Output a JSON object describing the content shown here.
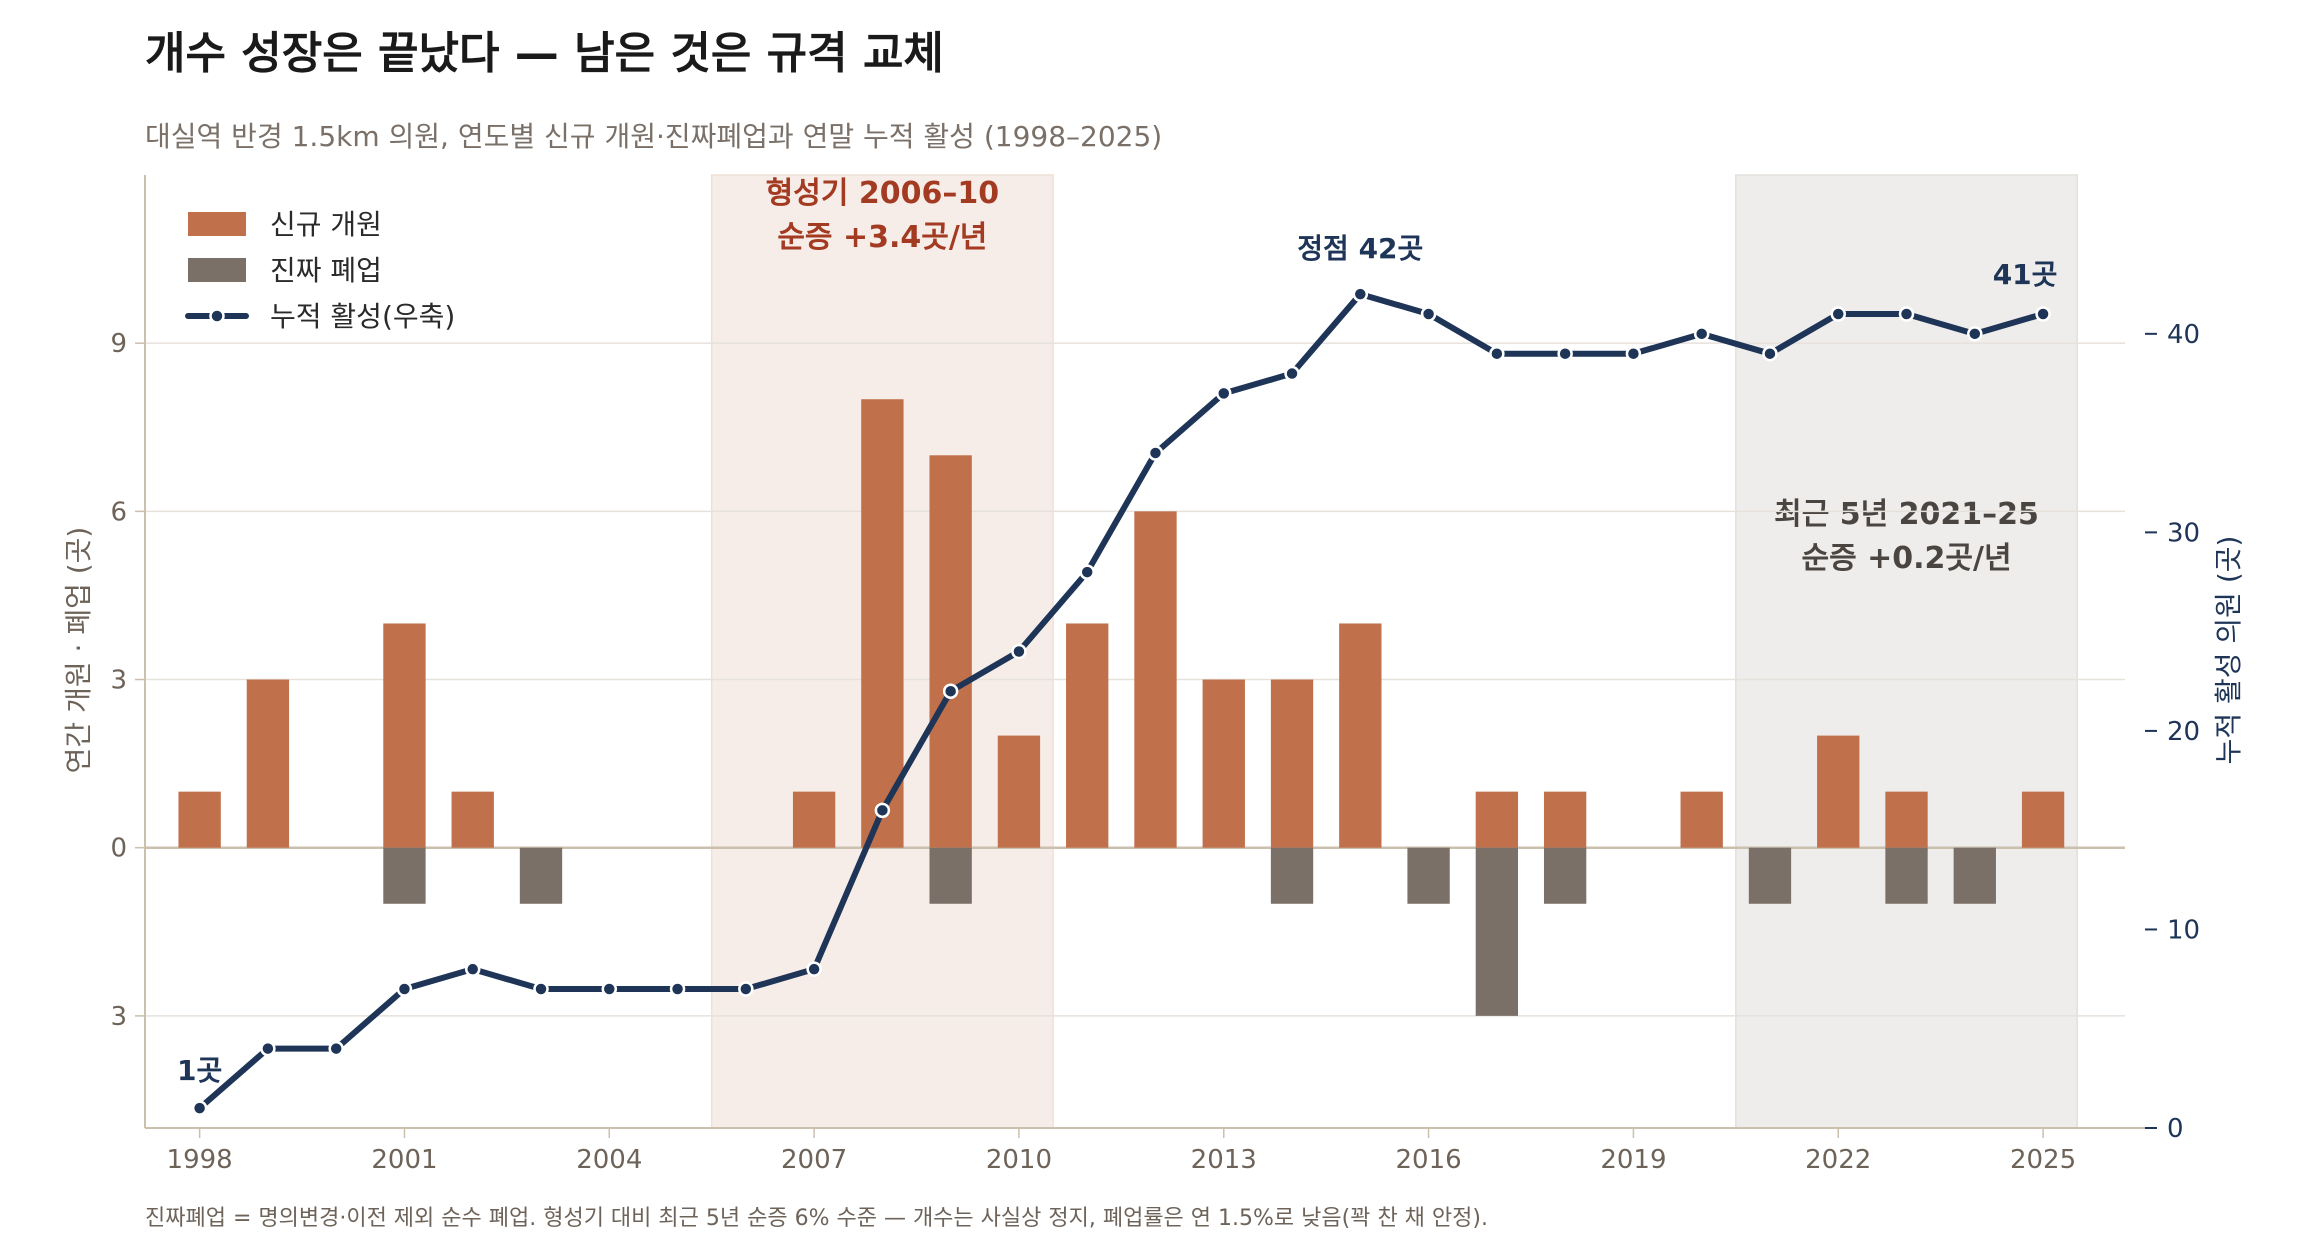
{
  "header": {
    "title": "개수 성장은 끝났다 — 남은 것은 규격 교체",
    "subtitle": "대실역 반경 1.5km 의원, 연도별 신규 개원·진짜폐업과 연말 누적 활성 (1998–2025)"
  },
  "footnote": "진짜폐업 = 명의변경·이전 제외 순수 폐업. 형성기 대비 최근 5년 순증 6% 수준 — 개수는 사실상 정지, 폐업률은 연 1.5%로 낮음(꽉 찬 채 안정).",
  "colors": {
    "opening": "#c0704a",
    "closing": "#7a7068",
    "cumulative": "#1e3558",
    "formation_band": "#f7ede8",
    "recent_band": "#efedeb",
    "formation_text": "#a33a22",
    "recent_text": "#4a4540"
  },
  "chart_data": {
    "type": "bar",
    "x": [
      1998,
      1999,
      2000,
      2001,
      2002,
      2003,
      2004,
      2005,
      2006,
      2007,
      2008,
      2009,
      2010,
      2011,
      2012,
      2013,
      2014,
      2015,
      2016,
      2017,
      2018,
      2019,
      2020,
      2021,
      2022,
      2023,
      2024,
      2025
    ],
    "series": [
      {
        "name": "신규 개원",
        "type": "bar",
        "axis": "left",
        "values": [
          1,
          3,
          0,
          4,
          1,
          0,
          0,
          0,
          0,
          1,
          8,
          7,
          2,
          4,
          6,
          3,
          3,
          4,
          0,
          1,
          1,
          0,
          1,
          0,
          2,
          1,
          0,
          1
        ]
      },
      {
        "name": "진짜 폐업",
        "type": "bar",
        "axis": "left",
        "values": [
          0,
          0,
          0,
          1,
          0,
          1,
          0,
          0,
          0,
          0,
          0,
          1,
          0,
          0,
          0,
          0,
          1,
          0,
          1,
          3,
          1,
          0,
          0,
          1,
          0,
          1,
          1,
          0
        ]
      },
      {
        "name": "누적 활성(우축)",
        "type": "line",
        "axis": "right",
        "values": [
          1,
          4,
          4,
          7,
          8,
          7,
          7,
          7,
          7,
          8,
          16,
          22,
          24,
          28,
          34,
          37,
          38,
          42,
          41,
          39,
          39,
          39,
          40,
          39,
          41,
          41,
          40,
          41
        ]
      }
    ],
    "left_axis": {
      "label": "연간 개원 · 폐업 (곳)",
      "ticks": [
        -3,
        0,
        3,
        6,
        9
      ],
      "tick_labels": [
        "3",
        "0",
        "3",
        "6",
        "9"
      ],
      "range": [
        -5,
        12
      ]
    },
    "right_axis": {
      "label": "누적 활성 의원 (곳)",
      "ticks": [
        0,
        10,
        20,
        30,
        40
      ],
      "tick_labels": [
        "0",
        "10",
        "20",
        "30",
        "40"
      ],
      "range": [
        0,
        48
      ]
    },
    "x_ticks": [
      1998,
      2001,
      2004,
      2007,
      2010,
      2013,
      2016,
      2019,
      2022,
      2025
    ],
    "x_range": [
      1997.2,
      2026.2
    ],
    "legend": {
      "placement": "top-left",
      "items": [
        "신규 개원",
        "진짜 폐업",
        "누적 활성(우축)"
      ]
    },
    "grid": "horizontal",
    "bands": [
      {
        "from": 2005.5,
        "to": 2010.5,
        "label_line1": "형성기 2006–10",
        "label_line2": "순증 +3.4곳/년"
      },
      {
        "from": 2020.5,
        "to": 2025.5,
        "label_line1": "최근 5년 2021–25",
        "label_line2": "순증 +0.2곳/년"
      }
    ],
    "annotations": [
      {
        "x": 1998,
        "value": 1,
        "text": "1곳"
      },
      {
        "x": 2015,
        "value": 42,
        "text": "정점 42곳"
      },
      {
        "x": 2025,
        "value": 41,
        "text": "41곳"
      }
    ]
  }
}
